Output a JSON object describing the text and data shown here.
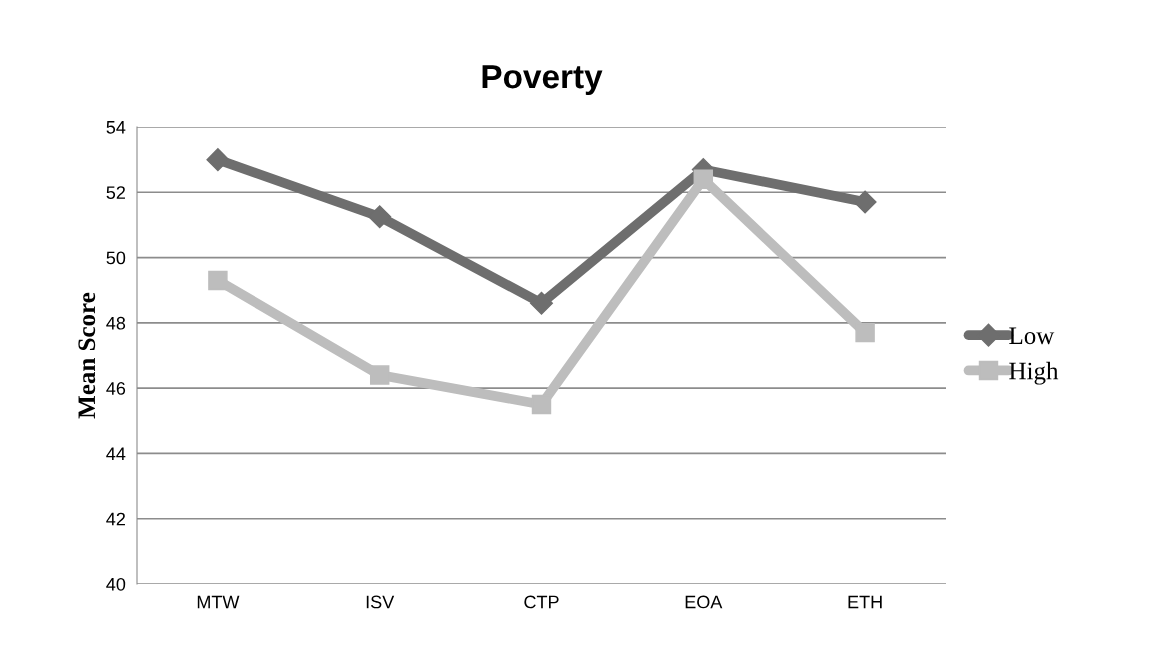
{
  "chart_data": {
    "type": "line",
    "title": "Poverty",
    "ylabel": "Mean Score",
    "categories": [
      "MTW",
      "ISV",
      "CTP",
      "EOA",
      "ETH"
    ],
    "series": [
      {
        "name": "Low",
        "color": "#6e6e6e",
        "values": [
          53.0,
          51.25,
          48.6,
          52.7,
          51.7
        ],
        "marker": "diamond"
      },
      {
        "name": "High",
        "color": "#bdbdbd",
        "values": [
          49.3,
          46.4,
          45.5,
          52.4,
          47.7
        ],
        "marker": "square"
      }
    ],
    "ylim": [
      40,
      54
    ],
    "yticks": [
      40,
      42,
      44,
      46,
      48,
      50,
      52,
      54
    ],
    "grid": "y",
    "legend": "right"
  }
}
